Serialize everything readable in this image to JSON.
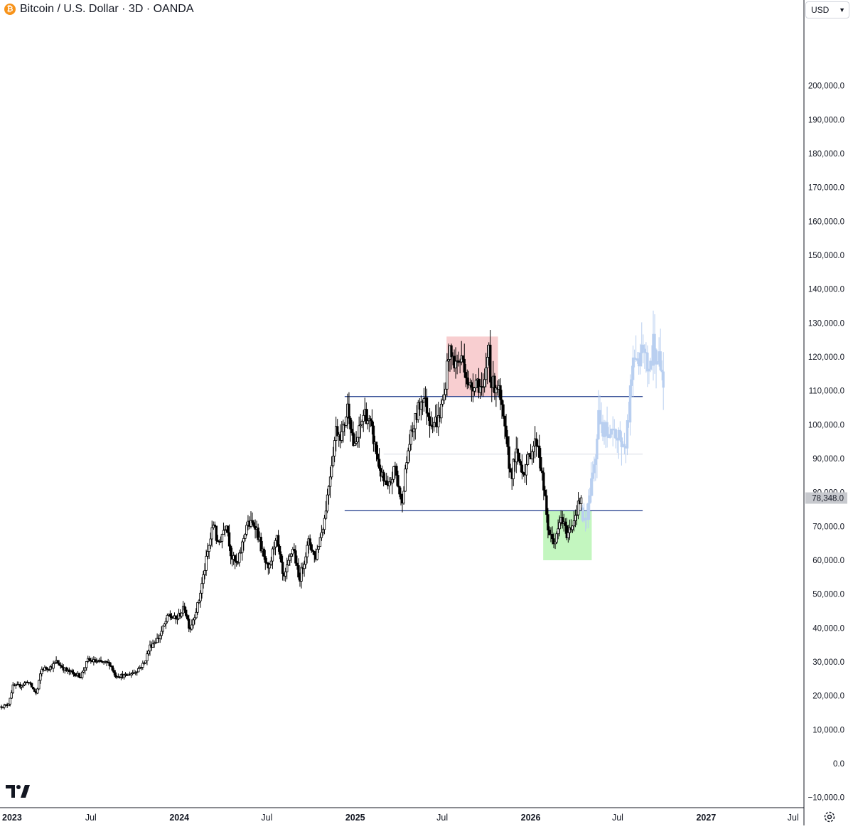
{
  "header": {
    "title": "Bitcoin / U.S. Dollar · 3D · OANDA",
    "logo_letter": "₿"
  },
  "currency": {
    "value": "USD"
  },
  "icons": {
    "symbol": "bitcoin-icon",
    "brand": "tradingview-logo-icon",
    "settings": "gear-icon",
    "dropdown": "chevron-down-icon"
  },
  "colors": {
    "candle_up_fill": "#ffffff",
    "candle_down_fill": "#000000",
    "candle_outline": "#000000",
    "projection": "#b9cff0",
    "level_line": "#1e3a8a",
    "mid_line": "#d8dce6",
    "resistance_zone": "#f7c5c8",
    "support_zone": "#b9f5b4",
    "price_label_bg": "#c7c9ce",
    "axis_line": "#131722"
  },
  "chart_data": {
    "type": "candlestick",
    "title": "Bitcoin / U.S. Dollar · 3D · OANDA",
    "x_ticks": [
      {
        "date": "2023-01-01",
        "label": "2023"
      },
      {
        "date": "2023-07-01",
        "label": "Jul"
      },
      {
        "date": "2024-01-01",
        "label": "2024"
      },
      {
        "date": "2024-07-01",
        "label": "Jul"
      },
      {
        "date": "2025-01-01",
        "label": "2025"
      },
      {
        "date": "2025-07-01",
        "label": "Jul"
      },
      {
        "date": "2026-01-01",
        "label": "2026"
      },
      {
        "date": "2026-07-01",
        "label": "Jul"
      },
      {
        "date": "2027-01-01",
        "label": "2027"
      },
      {
        "date": "2027-07-01",
        "label": "Jul"
      }
    ],
    "xlim": [
      "2022-12-24",
      "2027-07-22"
    ],
    "y_ticks": [
      -10000,
      0,
      10000,
      20000,
      30000,
      40000,
      50000,
      60000,
      70000,
      80000,
      90000,
      100000,
      110000,
      120000,
      130000,
      140000,
      150000,
      160000,
      170000,
      180000,
      190000,
      200000
    ],
    "y_tick_labels": [
      "−10,000.0",
      "0.0",
      "10,000.0",
      "20,000.0",
      "30,000.0",
      "40,000.0",
      "50,000.0",
      "60,000.0",
      "70,000.0",
      "80,000.0",
      "90,000.0",
      "100,000.0",
      "110,000.0",
      "120,000.0",
      "130,000.0",
      "140,000.0",
      "150,000.0",
      "160,000.0",
      "170,000.0",
      "180,000.0",
      "190,000.0",
      "200,000.0"
    ],
    "ylim": [
      -13000,
      219000
    ],
    "last_price": 78348,
    "last_price_label": "78,348.0",
    "close_path": [
      [
        "2022-12-24",
        16800
      ],
      [
        "2023-01-10",
        17300
      ],
      [
        "2023-01-20",
        22800
      ],
      [
        "2023-02-05",
        23000
      ],
      [
        "2023-02-20",
        24300
      ],
      [
        "2023-03-10",
        20500
      ],
      [
        "2023-03-20",
        27800
      ],
      [
        "2023-04-10",
        28500
      ],
      [
        "2023-04-20",
        30100
      ],
      [
        "2023-05-10",
        27500
      ],
      [
        "2023-06-10",
        25800
      ],
      [
        "2023-06-25",
        30500
      ],
      [
        "2023-07-20",
        29900
      ],
      [
        "2023-08-10",
        29500
      ],
      [
        "2023-08-20",
        26100
      ],
      [
        "2023-09-10",
        25800
      ],
      [
        "2023-10-01",
        27100
      ],
      [
        "2023-10-20",
        29600
      ],
      [
        "2023-11-01",
        34600
      ],
      [
        "2023-11-20",
        37300
      ],
      [
        "2023-12-10",
        43800
      ],
      [
        "2023-12-25",
        42500
      ],
      [
        "2024-01-12",
        46000
      ],
      [
        "2024-01-23",
        39600
      ],
      [
        "2024-02-10",
        47500
      ],
      [
        "2024-02-28",
        61500
      ],
      [
        "2024-03-14",
        72000
      ],
      [
        "2024-03-20",
        63800
      ],
      [
        "2024-04-08",
        71500
      ],
      [
        "2024-04-18",
        61300
      ],
      [
        "2024-05-01",
        58300
      ],
      [
        "2024-05-20",
        70500
      ],
      [
        "2024-06-07",
        70700
      ],
      [
        "2024-06-25",
        60500
      ],
      [
        "2024-07-05",
        56200
      ],
      [
        "2024-07-20",
        67800
      ],
      [
        "2024-08-05",
        53800
      ],
      [
        "2024-08-25",
        64200
      ],
      [
        "2024-09-06",
        53900
      ],
      [
        "2024-09-27",
        65800
      ],
      [
        "2024-10-10",
        60500
      ],
      [
        "2024-10-29",
        72300
      ],
      [
        "2024-11-12",
        88000
      ],
      [
        "2024-11-22",
        98600
      ],
      [
        "2024-12-05",
        97000
      ],
      [
        "2024-12-17",
        106000
      ],
      [
        "2024-12-30",
        92300
      ],
      [
        "2025-01-20",
        104000
      ],
      [
        "2025-02-03",
        99000
      ],
      [
        "2025-02-25",
        84500
      ],
      [
        "2025-03-10",
        80500
      ],
      [
        "2025-03-25",
        87500
      ],
      [
        "2025-04-07",
        76300
      ],
      [
        "2025-04-22",
        93500
      ],
      [
        "2025-05-10",
        103500
      ],
      [
        "2025-05-22",
        109000
      ],
      [
        "2025-06-05",
        101500
      ],
      [
        "2025-06-22",
        100900
      ],
      [
        "2025-07-05",
        108500
      ],
      [
        "2025-07-14",
        121500
      ],
      [
        "2025-07-28",
        118000
      ],
      [
        "2025-08-14",
        119500
      ],
      [
        "2025-08-25",
        110500
      ],
      [
        "2025-09-10",
        113500
      ],
      [
        "2025-09-25",
        109000
      ],
      [
        "2025-10-06",
        124000
      ],
      [
        "2025-10-10",
        112000
      ],
      [
        "2025-10-25",
        111500
      ],
      [
        "2025-11-05",
        101000
      ],
      [
        "2025-11-21",
        84500
      ],
      [
        "2025-12-01",
        91500
      ],
      [
        "2025-12-18",
        86000
      ],
      [
        "2026-01-05",
        93500
      ],
      [
        "2026-01-15",
        95500
      ],
      [
        "2026-01-30",
        79000
      ],
      [
        "2026-02-05",
        70000
      ],
      [
        "2026-02-12",
        66500
      ],
      [
        "2026-02-22",
        65500
      ],
      [
        "2026-03-05",
        72500
      ],
      [
        "2026-03-18",
        67500
      ],
      [
        "2026-03-28",
        70500
      ],
      [
        "2026-04-06",
        74500
      ],
      [
        "2026-04-16",
        78348
      ]
    ],
    "projection_path": [
      [
        "2026-04-16",
        75500
      ],
      [
        "2026-04-26",
        71500
      ],
      [
        "2026-05-05",
        79500
      ],
      [
        "2026-05-14",
        89500
      ],
      [
        "2026-05-22",
        101500
      ],
      [
        "2026-06-01",
        96000
      ],
      [
        "2026-06-10",
        99500
      ],
      [
        "2026-06-19",
        95500
      ],
      [
        "2026-06-28",
        97500
      ],
      [
        "2026-07-07",
        94500
      ],
      [
        "2026-07-16",
        92500
      ],
      [
        "2026-07-24",
        103000
      ],
      [
        "2026-08-02",
        122500
      ],
      [
        "2026-08-12",
        118500
      ],
      [
        "2026-08-22",
        120500
      ],
      [
        "2026-09-02",
        117500
      ],
      [
        "2026-09-13",
        123000
      ],
      [
        "2026-09-24",
        118000
      ],
      [
        "2026-10-06",
        112500
      ]
    ],
    "horizontal_levels": [
      {
        "value": 108300,
        "from": "2024-12-10",
        "to": "2026-08-22",
        "style": "solid"
      },
      {
        "value": 74600,
        "from": "2024-12-10",
        "to": "2026-08-22",
        "style": "solid"
      },
      {
        "value": 91300,
        "from": "2025-03-01",
        "to": "2026-08-22",
        "style": "faint"
      }
    ],
    "zones": [
      {
        "kind": "resistance",
        "x1": "2025-07-10",
        "x2": "2025-10-25",
        "y1": 108300,
        "y2": 126000
      },
      {
        "kind": "support",
        "x1": "2026-01-27",
        "x2": "2026-05-08",
        "y1": 60000,
        "y2": 74600
      }
    ]
  }
}
